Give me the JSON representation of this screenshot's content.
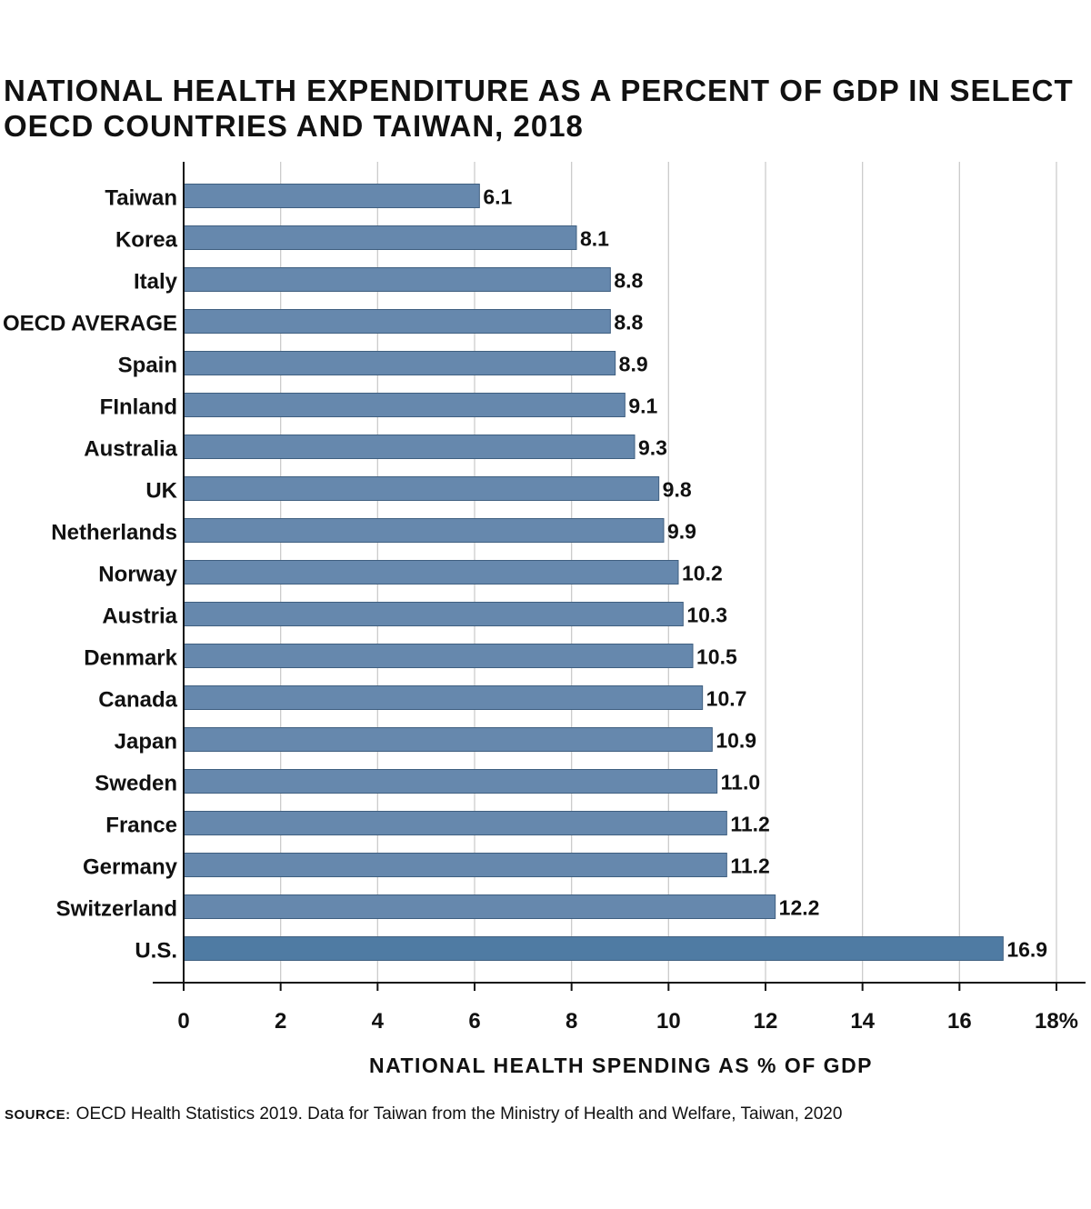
{
  "chart_data": {
    "type": "bar",
    "orientation": "horizontal",
    "title": "NATIONAL HEALTH EXPENDITURE AS A PERCENT OF GDP IN SELECT OECD COUNTRIES AND TAIWAN, 2018",
    "xlabel": "NATIONAL HEALTH SPENDING AS % OF GDP",
    "ylabel": "",
    "xlim": [
      0,
      18
    ],
    "x_ticks": [
      "0",
      "2",
      "4",
      "6",
      "8",
      "10",
      "12",
      "14",
      "16",
      "18%"
    ],
    "grid": true,
    "categories": [
      "Taiwan",
      "Korea",
      "Italy",
      "OECD AVERAGE",
      "Spain",
      "FInland",
      "Australia",
      "UK",
      "Netherlands",
      "Norway",
      "Austria",
      "Denmark",
      "Canada",
      "Japan",
      "Sweden",
      "France",
      "Germany",
      "Switzerland",
      "U.S."
    ],
    "values": [
      6.1,
      8.1,
      8.8,
      8.8,
      8.9,
      9.1,
      9.3,
      9.8,
      9.9,
      10.2,
      10.3,
      10.5,
      10.7,
      10.9,
      11.0,
      11.2,
      11.2,
      12.2,
      16.9
    ],
    "value_labels": [
      "6.1",
      "8.1",
      "8.8",
      "8.8",
      "8.9",
      "9.1",
      "9.3",
      "9.8",
      "9.9",
      "10.2",
      "10.3",
      "10.5",
      "10.7",
      "10.9",
      "11.0",
      "11.2",
      "11.2",
      "12.2",
      "16.9"
    ],
    "colors": {
      "bar": "#6688ad",
      "bar_highlight": "#4f7ba3",
      "bar_stroke": "#3f5f80",
      "grid": "#cccccc",
      "axis": "#111111",
      "text": "#111111"
    }
  },
  "source": {
    "tag": "SOURCE:",
    "text": "OECD Health Statistics 2019. Data for Taiwan from the Ministry of Health and Welfare, Taiwan, 2020"
  }
}
